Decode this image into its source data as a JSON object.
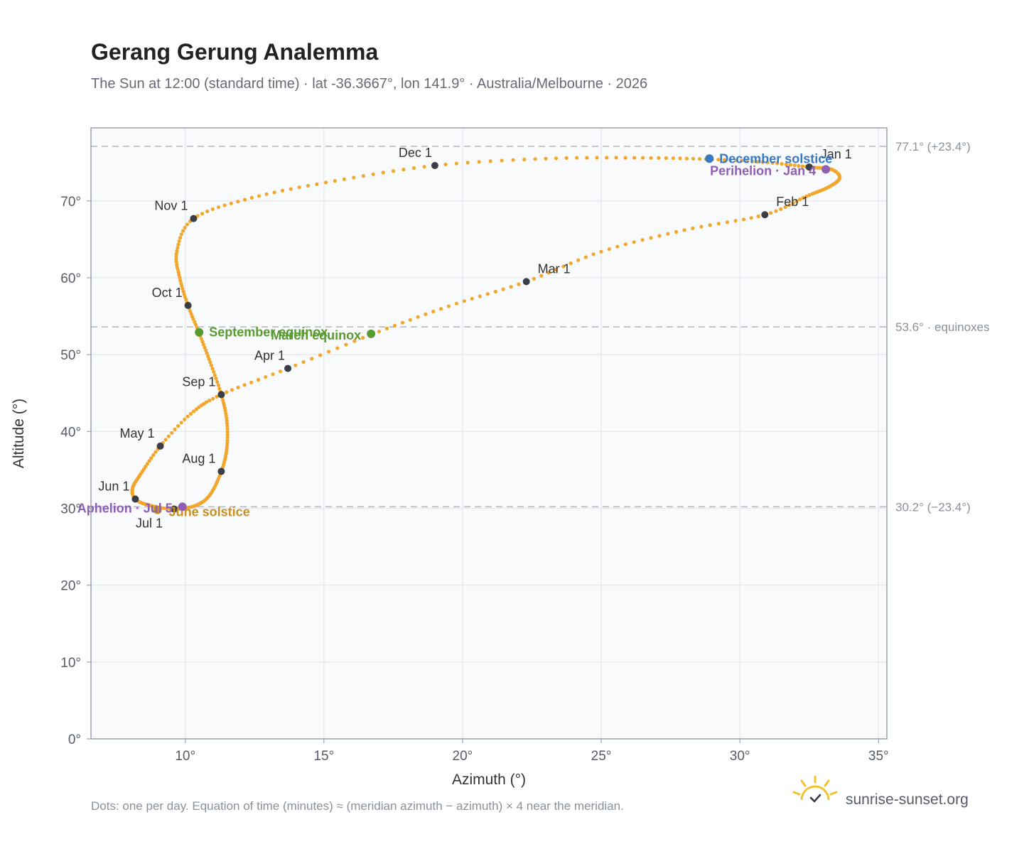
{
  "header": {
    "title": "Gerang Gerung Analemma",
    "subtitle": "The Sun at 12:00 (standard time) · lat -36.3667°, lon 141.9° · Australia/Melbourne · 2026"
  },
  "footer": {
    "note": "Dots: one per day. Equation of time (minutes) ≈ (meridian azimuth − azimuth) × 4 near the meridian.",
    "brand": "sunrise-sunset.org",
    "brand_icon": "sun-logo-icon"
  },
  "colors": {
    "curve": "#f2a72c",
    "month_marker": "#3a3d45",
    "solstice_dec": "#3a78c2",
    "solstice_jun": "#c9901c",
    "equinox": "#5a9a32",
    "apsis": "#8e5fb5",
    "plot_bg": "#f8fafc",
    "grid": "#e3e8ee",
    "ref_line": "#b4bcc6"
  },
  "chart_data": {
    "type": "scatter",
    "title": "Gerang Gerung Analemma",
    "xlabel": "Azimuth (°)",
    "ylabel": "Altitude (°)",
    "xlim": [
      6.6,
      35.3
    ],
    "ylim": [
      0,
      79.5
    ],
    "x_ticks": [
      10,
      15,
      20,
      25,
      30,
      35
    ],
    "x_tick_labels": [
      "10°",
      "15°",
      "20°",
      "25°",
      "30°",
      "35°"
    ],
    "y_ticks": [
      0,
      10,
      20,
      30,
      40,
      50,
      60,
      70
    ],
    "y_tick_labels": [
      "0°",
      "10°",
      "20°",
      "30°",
      "40°",
      "50°",
      "60°",
      "70°"
    ],
    "grid": true,
    "reference_lines": [
      {
        "y": 77.1,
        "label": "77.1° (+23.4°)"
      },
      {
        "y": 53.6,
        "label": "53.6° · equinoxes"
      },
      {
        "y": 30.2,
        "label": "30.2° (−23.4°)"
      }
    ],
    "curve_path": [
      [
        32.5,
        74.4
      ],
      [
        33.3,
        74.1
      ],
      [
        33.6,
        73.0
      ],
      [
        33.2,
        71.8
      ],
      [
        32.4,
        70.6
      ],
      [
        30.9,
        68.2
      ],
      [
        28.0,
        66.2
      ],
      [
        25.0,
        63.4
      ],
      [
        22.3,
        59.5
      ],
      [
        19.5,
        56.3
      ],
      [
        16.7,
        52.6
      ],
      [
        13.7,
        48.2
      ],
      [
        11.3,
        44.8
      ],
      [
        10.2,
        42.3
      ],
      [
        9.1,
        38.1
      ],
      [
        8.4,
        34.5
      ],
      [
        8.1,
        32.6
      ],
      [
        8.2,
        31.2
      ],
      [
        8.7,
        30.4
      ],
      [
        9.6,
        29.9
      ],
      [
        10.4,
        30.4
      ],
      [
        10.9,
        31.8
      ],
      [
        11.3,
        34.8
      ],
      [
        11.5,
        37.8
      ],
      [
        11.5,
        41.4
      ],
      [
        11.3,
        44.8
      ],
      [
        10.9,
        49.0
      ],
      [
        10.5,
        52.8
      ],
      [
        10.1,
        56.4
      ],
      [
        9.8,
        60.0
      ],
      [
        9.7,
        63.5
      ],
      [
        10.3,
        67.7
      ],
      [
        12.4,
        70.4
      ],
      [
        15.4,
        72.6
      ],
      [
        19.0,
        74.6
      ],
      [
        23.0,
        75.5
      ],
      [
        26.5,
        75.6
      ],
      [
        29.0,
        75.4
      ],
      [
        31.0,
        75.0
      ],
      [
        32.5,
        74.4
      ]
    ],
    "month_markers": [
      {
        "label": "Jan 1",
        "x": 32.5,
        "y": 74.4
      },
      {
        "label": "Feb 1",
        "x": 30.9,
        "y": 68.2
      },
      {
        "label": "Mar 1",
        "x": 22.3,
        "y": 59.5
      },
      {
        "label": "Apr 1",
        "x": 13.7,
        "y": 48.2
      },
      {
        "label": "May 1",
        "x": 9.1,
        "y": 38.1
      },
      {
        "label": "Jun 1",
        "x": 8.2,
        "y": 31.2
      },
      {
        "label": "Jul 1",
        "x": 9.6,
        "y": 29.9
      },
      {
        "label": "Aug 1",
        "x": 11.3,
        "y": 34.8
      },
      {
        "label": "Sep 1",
        "x": 11.3,
        "y": 44.8
      },
      {
        "label": "Oct 1",
        "x": 10.1,
        "y": 56.4
      },
      {
        "label": "Nov 1",
        "x": 10.3,
        "y": 67.7
      },
      {
        "label": "Dec 1",
        "x": 19.0,
        "y": 74.6
      }
    ],
    "events": [
      {
        "label": "December solstice",
        "x": 28.9,
        "y": 75.5,
        "color": "#3a78c2"
      },
      {
        "label": "Perihelion · Jan 4",
        "x": 33.1,
        "y": 74.1,
        "color": "#8e5fb5"
      },
      {
        "label": "March equinox",
        "x": 16.7,
        "y": 52.7,
        "color": "#5a9a32"
      },
      {
        "label": "September equinox",
        "x": 10.5,
        "y": 52.9,
        "color": "#5a9a32"
      },
      {
        "label": "June solstice",
        "x": 9.0,
        "y": 29.8,
        "color": "#c9901c"
      },
      {
        "label": "Aphelion · Jul 5",
        "x": 9.9,
        "y": 30.2,
        "color": "#8e5fb5"
      }
    ]
  }
}
